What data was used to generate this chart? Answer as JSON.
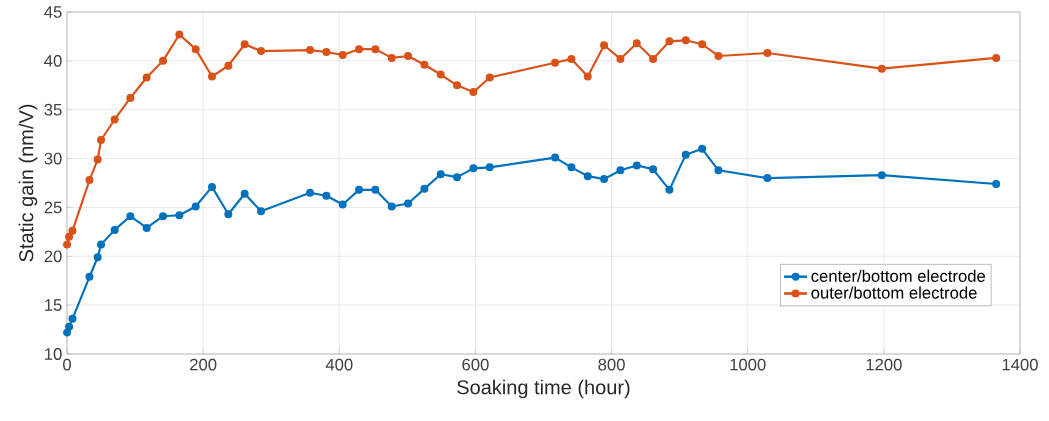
{
  "chart_data": {
    "type": "line",
    "xlabel": "Soaking time (hour)",
    "ylabel": "Static gain (nm/V)",
    "xlim": [
      0,
      1400
    ],
    "ylim": [
      10,
      45
    ],
    "xticks": [
      0,
      200,
      400,
      600,
      800,
      1000,
      1200,
      1400
    ],
    "yticks": [
      10,
      15,
      20,
      25,
      30,
      35,
      40,
      45
    ],
    "grid": true,
    "legend": "bottom right",
    "marker": "circle",
    "line_style": "solid",
    "series": [
      {
        "name": "center/bottom electrode",
        "color": "#0072bd",
        "x": [
          0,
          3,
          8,
          33,
          45,
          50,
          70,
          93,
          117,
          141,
          165,
          189,
          213,
          237,
          261,
          285,
          357,
          381,
          405,
          429,
          453,
          477,
          501,
          525,
          549,
          573,
          597,
          621,
          717,
          741,
          765,
          789,
          813,
          837,
          861,
          885,
          909,
          933,
          957,
          1029,
          1197,
          1365
        ],
        "values": [
          12.2,
          12.8,
          13.6,
          17.9,
          19.9,
          21.2,
          22.7,
          24.1,
          22.9,
          24.1,
          24.2,
          25.1,
          27.1,
          24.3,
          26.4,
          24.6,
          26.5,
          26.2,
          25.3,
          26.8,
          26.8,
          25.1,
          25.4,
          26.9,
          28.4,
          28.1,
          29.0,
          29.1,
          30.1,
          29.1,
          28.2,
          27.9,
          28.8,
          29.3,
          28.9,
          26.8,
          30.4,
          31.0,
          28.8,
          28.0,
          28.3,
          27.4
        ]
      },
      {
        "name": "outer/bottom electrode",
        "color": "#d95319",
        "x": [
          0,
          3,
          8,
          33,
          45,
          50,
          70,
          93,
          117,
          141,
          165,
          189,
          213,
          237,
          261,
          285,
          357,
          381,
          405,
          429,
          453,
          477,
          501,
          525,
          549,
          573,
          597,
          621,
          717,
          741,
          765,
          789,
          813,
          837,
          861,
          885,
          909,
          933,
          957,
          1029,
          1197,
          1365
        ],
        "values": [
          21.2,
          22.0,
          22.6,
          27.8,
          29.9,
          31.9,
          34.0,
          36.2,
          38.3,
          40.0,
          42.7,
          41.2,
          38.4,
          39.5,
          41.7,
          41.0,
          41.1,
          40.9,
          40.6,
          41.2,
          41.2,
          40.3,
          40.5,
          39.6,
          38.6,
          37.5,
          36.8,
          38.3,
          39.8,
          40.2,
          38.4,
          41.6,
          40.2,
          41.8,
          40.2,
          42.0,
          42.1,
          41.7,
          40.5,
          40.8,
          39.2,
          40.3
        ]
      }
    ]
  }
}
